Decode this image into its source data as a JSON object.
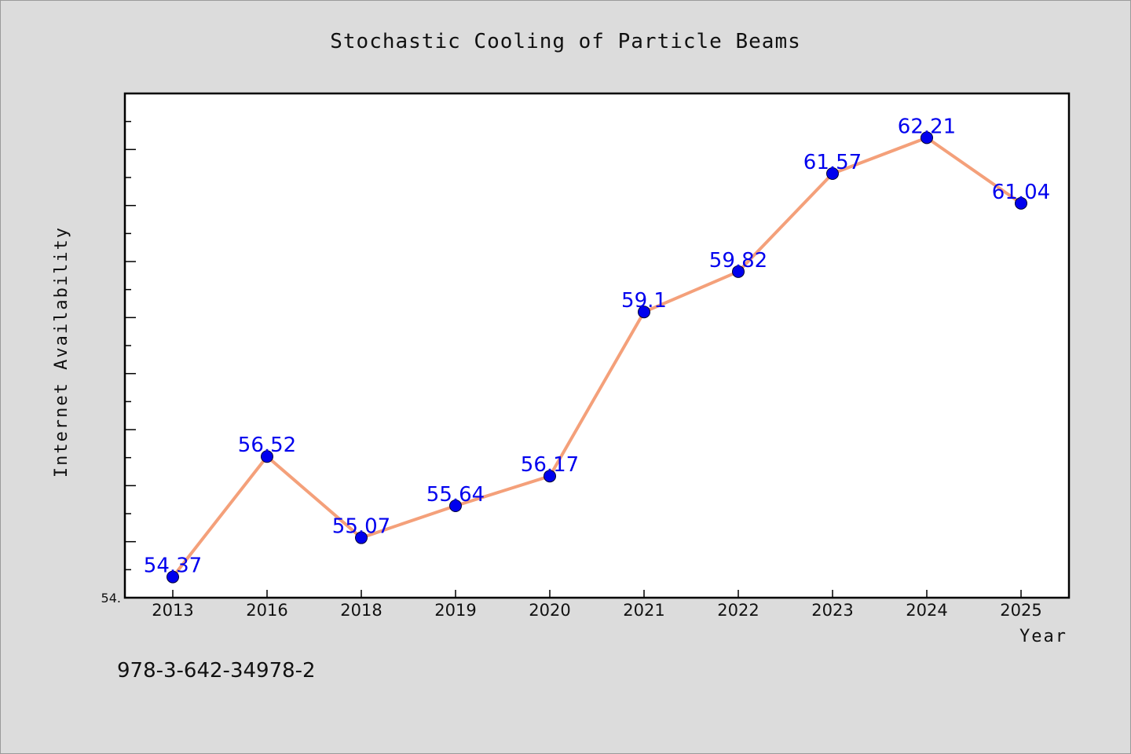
{
  "chart_data": {
    "type": "line",
    "title": "Stochastic Cooling of Particle Beams",
    "xlabel": "Year",
    "ylabel": "Internet Availability",
    "categories": [
      "2013",
      "2016",
      "2018",
      "2019",
      "2020",
      "2021",
      "2022",
      "2023",
      "2024",
      "2025"
    ],
    "series": [
      {
        "values": [
          54.37,
          56.52,
          55.07,
          55.64,
          56.17,
          59.1,
          59.82,
          61.57,
          62.21,
          61.04
        ],
        "labels": [
          "54.37",
          "56.52",
          "55.07",
          "55.64",
          "56.17",
          "59.1",
          "59.82",
          "61.57",
          "62.21",
          "61.04"
        ]
      }
    ],
    "ylim": [
      54.0,
      63.0
    ],
    "y_tick_label": "54.",
    "grid": false,
    "line_color": "#f4a07a",
    "marker_color": "#0000ee",
    "label_color": "#0000ee",
    "background": "#dcdcdc",
    "plot_background": "#ffffff"
  },
  "footnote": "978-3-642-34978-2"
}
